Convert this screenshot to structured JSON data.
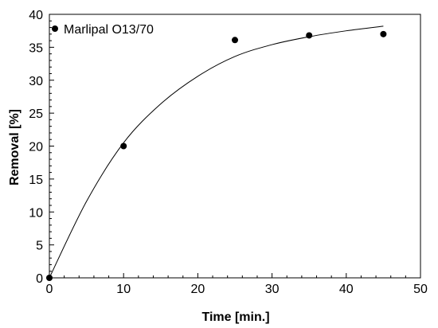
{
  "chart_data": {
    "type": "scatter",
    "xlabel": "Time [min.]",
    "ylabel": "Removal [%]",
    "xlim": [
      0,
      50
    ],
    "ylim": [
      0,
      40
    ],
    "xticks": [
      "0",
      "10",
      "20",
      "30",
      "40",
      "50"
    ],
    "yticks": [
      "0",
      "5",
      "10",
      "15",
      "20",
      "25",
      "30",
      "35",
      "40"
    ],
    "legend_position": "top-left",
    "grid": false,
    "series": [
      {
        "name": "Marlipal O13/70",
        "marker_color": "#000000",
        "points": [
          {
            "x": 0,
            "y": 0
          },
          {
            "x": 10,
            "y": 20
          },
          {
            "x": 25,
            "y": 36.1
          },
          {
            "x": 35,
            "y": 36.8
          },
          {
            "x": 45,
            "y": 37
          }
        ]
      }
    ],
    "fit_curve": {
      "color": "#000000",
      "points": [
        {
          "x": 0,
          "y": 0
        },
        {
          "x": 5,
          "y": 11.6
        },
        {
          "x": 10,
          "y": 20.5
        },
        {
          "x": 15,
          "y": 26.4
        },
        {
          "x": 20,
          "y": 30.6
        },
        {
          "x": 25,
          "y": 33.6
        },
        {
          "x": 30,
          "y": 35.4
        },
        {
          "x": 35,
          "y": 36.6
        },
        {
          "x": 40,
          "y": 37.5
        },
        {
          "x": 45,
          "y": 38.2
        }
      ]
    }
  }
}
